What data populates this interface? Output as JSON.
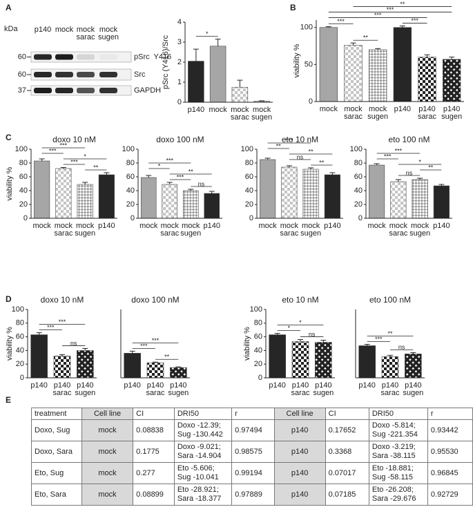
{
  "panel_labels": [
    "A",
    "B",
    "C",
    "D",
    "E"
  ],
  "blot": {
    "unit": "kDa",
    "lanes": [
      [
        "p140"
      ],
      [
        "mock"
      ],
      [
        "mock",
        "sarac"
      ],
      [
        "mock",
        "sugen"
      ]
    ],
    "markers": [
      60,
      60,
      37
    ],
    "bands": [
      "pSrc  Y416",
      "Src",
      "GAPDH"
    ]
  },
  "chart_data": [
    {
      "type": "bar",
      "ylabel": "pSrc (Y416)/Src",
      "categories": [
        [
          "p140"
        ],
        [
          "mock"
        ],
        [
          "mock",
          "sarac"
        ],
        [
          "mock",
          "sugen"
        ]
      ],
      "values": [
        2.05,
        2.8,
        0.75,
        0.05
      ],
      "errors": [
        0.6,
        0.35,
        0.35,
        0.02
      ],
      "styles": [
        "dark",
        "gray",
        "check",
        "check-gray"
      ],
      "ylim": [
        0,
        4
      ],
      "yticks": [
        0,
        1,
        2,
        3,
        4
      ],
      "brackets": [
        {
          "from": 0,
          "to": 1,
          "label": "*"
        }
      ]
    },
    {
      "type": "bar",
      "ylabel": "viability %",
      "categories": [
        [
          "mock"
        ],
        [
          "mock",
          "sarac"
        ],
        [
          "mock",
          "sugen"
        ],
        [
          "p140"
        ],
        [
          "p140",
          "sarac"
        ],
        [
          "p140",
          "sugen"
        ]
      ],
      "values": [
        100,
        76,
        70,
        100,
        60,
        57
      ],
      "errors": [
        1,
        3,
        1.5,
        2,
        3,
        3
      ],
      "styles": [
        "gray",
        "check",
        "check-gray",
        "dark",
        "check-black",
        "cross-black"
      ],
      "ylim": [
        0,
        110
      ],
      "yticks": [
        0,
        50,
        100
      ],
      "brackets": [
        {
          "from": 1,
          "to": 5,
          "label": "**"
        },
        {
          "from": 0,
          "to": 5,
          "label": "***"
        },
        {
          "from": 0,
          "to": 4,
          "label": "***"
        },
        {
          "from": 0,
          "to": 1,
          "label": "***"
        },
        {
          "from": 1,
          "to": 2,
          "label": "**"
        },
        {
          "from": 3,
          "to": 4,
          "label": "***"
        }
      ]
    },
    {
      "type": "bar",
      "title": "doxo 10 nM",
      "ylabel": "viability %",
      "categories": [
        [
          "mock"
        ],
        [
          "mock",
          "sarac"
        ],
        [
          "mock",
          "sugen"
        ],
        [
          "p140"
        ]
      ],
      "values": [
        83,
        72,
        49,
        63
      ],
      "errors": [
        3,
        1.5,
        3,
        3
      ],
      "styles": [
        "gray",
        "check",
        "check-gray",
        "dark"
      ],
      "ylim": [
        0,
        100
      ],
      "yticks": [
        0,
        20,
        40,
        60,
        80,
        100
      ],
      "brackets": [
        {
          "from": 0,
          "to": 2,
          "label": "***"
        },
        {
          "from": 0,
          "to": 1,
          "label": "***"
        },
        {
          "from": 1,
          "to": 3,
          "label": "*"
        },
        {
          "from": 1,
          "to": 2,
          "label": "***"
        },
        {
          "from": 2,
          "to": 3,
          "label": "**"
        }
      ]
    },
    {
      "type": "bar",
      "title": "doxo 100 nM",
      "categories": [
        [
          "mock"
        ],
        [
          "mock",
          "sarac"
        ],
        [
          "mock",
          "sugen"
        ],
        [
          "p140"
        ]
      ],
      "values": [
        59,
        49,
        40,
        36
      ],
      "errors": [
        3,
        3,
        2,
        3
      ],
      "styles": [
        "gray",
        "check",
        "check-gray",
        "dark"
      ],
      "ylim": [
        0,
        100
      ],
      "yticks": [
        0,
        20,
        40,
        60,
        80,
        100
      ],
      "brackets": [
        {
          "from": 0,
          "to": 2,
          "label": "***"
        },
        {
          "from": 0,
          "to": 1,
          "label": "*"
        },
        {
          "from": 1,
          "to": 3,
          "label": "**"
        },
        {
          "from": 1,
          "to": 2,
          "label": "***"
        },
        {
          "from": 2,
          "to": 3,
          "label": "ns"
        }
      ]
    },
    {
      "type": "bar",
      "title": "eto 10 nM",
      "categories": [
        [
          "mock"
        ],
        [
          "mock",
          "sarac"
        ],
        [
          "mock",
          "sugen"
        ],
        [
          "p140"
        ]
      ],
      "values": [
        85,
        74,
        71,
        63
      ],
      "errors": [
        2,
        2,
        2,
        3
      ],
      "styles": [
        "gray",
        "check",
        "check-gray",
        "dark"
      ],
      "ylim": [
        0,
        100
      ],
      "yticks": [
        0,
        20,
        40,
        60,
        80,
        100
      ],
      "brackets": [
        {
          "from": 0,
          "to": 2,
          "label": "***"
        },
        {
          "from": 0,
          "to": 1,
          "label": "**"
        },
        {
          "from": 1,
          "to": 3,
          "label": "**"
        },
        {
          "from": 1,
          "to": 2,
          "label": "ns"
        },
        {
          "from": 2,
          "to": 3,
          "label": "**"
        }
      ]
    },
    {
      "type": "bar",
      "title": "eto 100 nM",
      "categories": [
        [
          "mock"
        ],
        [
          "mock",
          "sarac"
        ],
        [
          "mock",
          "sugen"
        ],
        [
          "p140"
        ]
      ],
      "values": [
        77,
        53,
        56,
        47
      ],
      "errors": [
        2,
        3,
        2,
        2
      ],
      "styles": [
        "gray",
        "check",
        "check-gray",
        "dark"
      ],
      "ylim": [
        0,
        100
      ],
      "yticks": [
        0,
        20,
        40,
        60,
        80,
        100
      ],
      "brackets": [
        {
          "from": 0,
          "to": 2,
          "label": "***"
        },
        {
          "from": 0,
          "to": 1,
          "label": "***"
        },
        {
          "from": 1,
          "to": 3,
          "label": "*"
        },
        {
          "from": 2,
          "to": 3,
          "label": "**"
        },
        {
          "from": 1,
          "to": 2,
          "label": "ns"
        }
      ]
    },
    {
      "type": "bar",
      "title": "doxo 10 nM",
      "ylabel": "viability %",
      "categories": [
        [
          "p140"
        ],
        [
          "p140",
          "sarac"
        ],
        [
          "p140",
          "sugen"
        ]
      ],
      "values": [
        63,
        32,
        40
      ],
      "errors": [
        3,
        2,
        3
      ],
      "styles": [
        "dark",
        "check-black",
        "cross-black"
      ],
      "ylim": [
        0,
        100
      ],
      "yticks": [
        0,
        20,
        40,
        60,
        80,
        100
      ],
      "brackets": [
        {
          "from": 0,
          "to": 2,
          "label": "***"
        },
        {
          "from": 0,
          "to": 1,
          "label": "***"
        },
        {
          "from": 1,
          "to": 2,
          "label": "ns"
        }
      ]
    },
    {
      "type": "bar",
      "title": "doxo 100 nM",
      "categories": [
        [
          "p140"
        ],
        [
          "p140",
          "sarac"
        ],
        [
          "p140",
          "sugen"
        ]
      ],
      "values": [
        36,
        22,
        15
      ],
      "errors": [
        3,
        1,
        1
      ],
      "styles": [
        "dark",
        "check-black",
        "cross-black"
      ],
      "ylim": [
        0,
        100
      ],
      "brackets": [
        {
          "from": 0,
          "to": 2,
          "label": "***"
        },
        {
          "from": 0,
          "to": 1,
          "label": "***"
        },
        {
          "from": 1,
          "to": 2,
          "label": "**"
        }
      ]
    },
    {
      "type": "bar",
      "title": "eto 10 nM",
      "ylabel": "viability %",
      "categories": [
        [
          "p140"
        ],
        [
          "p140",
          "sarac"
        ],
        [
          "p140",
          "sugen"
        ]
      ],
      "values": [
        63,
        53,
        52
      ],
      "errors": [
        2,
        3,
        3
      ],
      "styles": [
        "dark",
        "check-black",
        "cross-black"
      ],
      "ylim": [
        0,
        100
      ],
      "yticks": [
        0,
        20,
        40,
        60,
        80,
        100
      ],
      "brackets": [
        {
          "from": 0,
          "to": 2,
          "label": "*"
        },
        {
          "from": 0,
          "to": 1,
          "label": "*"
        },
        {
          "from": 1,
          "to": 2,
          "label": "ns"
        }
      ]
    },
    {
      "type": "bar",
      "title": "eto 100 nM",
      "categories": [
        [
          "p140"
        ],
        [
          "p140",
          "sarac"
        ],
        [
          "p140",
          "sugen"
        ]
      ],
      "values": [
        47,
        31,
        35
      ],
      "errors": [
        2,
        2,
        2
      ],
      "styles": [
        "dark",
        "check-black",
        "cross-black"
      ],
      "ylim": [
        0,
        100
      ],
      "brackets": [
        {
          "from": 0,
          "to": 2,
          "label": "**"
        },
        {
          "from": 0,
          "to": 1,
          "label": "***"
        },
        {
          "from": 1,
          "to": 2,
          "label": "ns"
        }
      ]
    }
  ],
  "table": {
    "header": [
      "treatment",
      "Cell line",
      "CI",
      "DRI50",
      "r",
      "Cell line",
      "CI",
      "DRI50",
      "r"
    ],
    "rows": [
      [
        "Doxo, Sug",
        "mock",
        "0.08838",
        [
          "Doxo -12.39;",
          "Sug -130.442"
        ],
        "0.97494",
        "p140",
        "0.17652",
        [
          "Doxo -5.814;",
          "Sug -221.354"
        ],
        "0.93442"
      ],
      [
        "Doxo, Sara",
        "mock",
        "0.1775",
        [
          "Doxo -9.021;",
          "Sara -14.904"
        ],
        "0.98575",
        "p140",
        "0.3368",
        [
          "Doxo -3.219;",
          "Sara -38.115"
        ],
        "0.95530"
      ],
      [
        "Eto, Sug",
        "mock",
        "0.277",
        [
          "Eto -5.606;",
          "Sug -10.041"
        ],
        "0.99194",
        "p140",
        "0.07017",
        [
          "Eto -18.881;",
          "Sug -58.115"
        ],
        "0.96845"
      ],
      [
        "Eto, Sara",
        "mock",
        "0.08899",
        [
          "Eto -28.921;",
          "Sara -18.377"
        ],
        "0.97889",
        "p140",
        "0.07185",
        [
          "Eto -26.208;",
          "Sara -29.676"
        ],
        "0.92729"
      ]
    ]
  }
}
